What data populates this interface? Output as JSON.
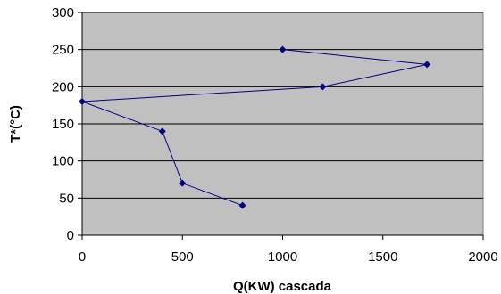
{
  "chart_data": {
    "type": "line",
    "title": "",
    "xlabel": "Q(KW) cascada",
    "ylabel": "T*(°C)",
    "xlim": [
      0,
      2000
    ],
    "ylim": [
      0,
      300
    ],
    "xticks": [
      0,
      500,
      1000,
      1500,
      2000
    ],
    "yticks": [
      0,
      50,
      100,
      150,
      200,
      250,
      300
    ],
    "grid": "horizontal",
    "legend": "none",
    "colors": {
      "plot_background": "#c0c0c0",
      "series": "#000080",
      "gridline": "#000000"
    },
    "series": [
      {
        "points": [
          {
            "x": 1000,
            "y": 250
          },
          {
            "x": 1720,
            "y": 230
          },
          {
            "x": 1200,
            "y": 200
          },
          {
            "x": 0,
            "y": 180
          },
          {
            "x": 400,
            "y": 140
          },
          {
            "x": 500,
            "y": 70
          },
          {
            "x": 800,
            "y": 40
          }
        ]
      }
    ]
  }
}
